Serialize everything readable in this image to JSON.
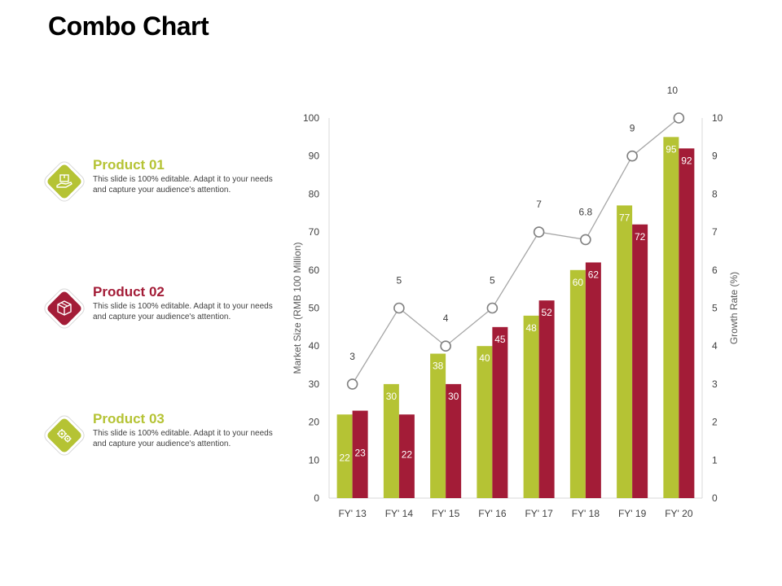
{
  "page": {
    "title": "Combo Chart"
  },
  "colors": {
    "green": "#b5c334",
    "red": "#a31c37",
    "line": "#a6a6a6"
  },
  "products": [
    {
      "name": "Product 01",
      "desc": "This slide is 100% editable. Adapt it to your needs and capture your audience's attention.",
      "color": "#b5c334",
      "icon": "box-hand-icon"
    },
    {
      "name": "Product 02",
      "desc": "This slide is 100% editable. Adapt it to your needs and capture your audience's attention.",
      "color": "#a31c37",
      "icon": "cube-icon"
    },
    {
      "name": "Product 03",
      "desc": "This slide is 100% editable. Adapt it to your needs and capture your audience's attention.",
      "color": "#b5c334",
      "icon": "gears-icon"
    }
  ],
  "chart_data": {
    "type": "bar",
    "categories": [
      "FY' 13",
      "FY' 14",
      "FY' 15",
      "FY' 16",
      "FY' 17",
      "FY' 18",
      "FY' 19",
      "FY' 20"
    ],
    "series": [
      {
        "name": "Product 01",
        "type": "bar",
        "color": "#b5c334",
        "values": [
          22,
          30,
          38,
          40,
          48,
          60,
          77,
          95
        ]
      },
      {
        "name": "Product 02",
        "type": "bar",
        "color": "#a31c37",
        "values": [
          23,
          22,
          30,
          45,
          52,
          62,
          72,
          92
        ]
      },
      {
        "name": "Growth Rate",
        "type": "line",
        "axis": "secondary",
        "color": "#a6a6a6",
        "values": [
          3,
          5,
          4,
          5,
          7,
          6.8,
          9,
          10
        ]
      }
    ],
    "ylabel": "Market Size (RMB 100 Million)",
    "y2label": "Growth Rate (%)",
    "ylim": [
      0,
      100
    ],
    "y2lim": [
      0,
      10
    ],
    "yticks": [
      "0",
      "10",
      "20",
      "30",
      "40",
      "50",
      "60",
      "70",
      "80",
      "90",
      "100"
    ],
    "y2ticks": [
      "0",
      "1",
      "2",
      "3",
      "4",
      "5",
      "6",
      "7",
      "8",
      "9",
      "10"
    ]
  }
}
